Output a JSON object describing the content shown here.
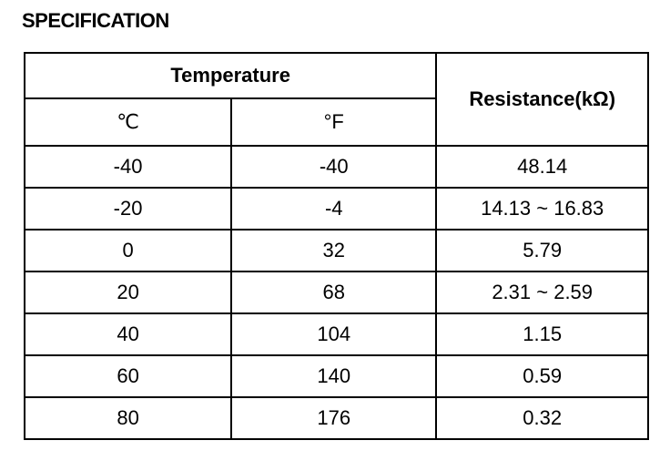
{
  "title": "SPECIFICATION",
  "table": {
    "header": {
      "group": "Temperature",
      "celsius": "℃",
      "fahrenheit": "°F",
      "resistance": "Resistance(kΩ)"
    },
    "rows": [
      [
        "-40",
        "-40",
        "48.14"
      ],
      [
        "-20",
        "-4",
        "14.13 ~ 16.83"
      ],
      [
        "0",
        "32",
        "5.79"
      ],
      [
        "20",
        "68",
        "2.31 ~ 2.59"
      ],
      [
        "40",
        "104",
        "1.15"
      ],
      [
        "60",
        "140",
        "0.59"
      ],
      [
        "80",
        "176",
        "0.32"
      ]
    ]
  }
}
